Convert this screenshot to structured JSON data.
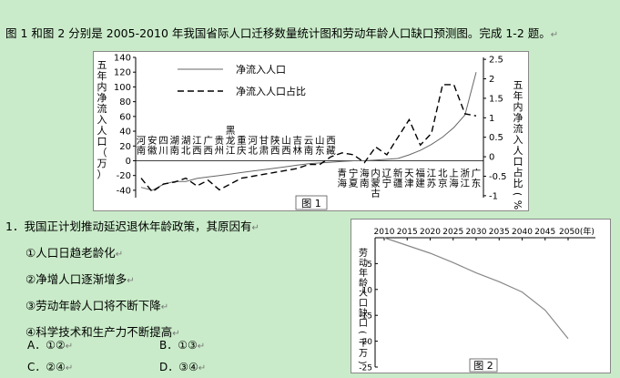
{
  "intro": "图 1 和图 2 分别是 2005-2010 年我国省际人口迁移数量统计图和劳动年龄人口缺口预测图。完成 1-2 题。",
  "return_mark": "↵",
  "question": {
    "stem": "1．我国正计划推动延迟退休年龄政策，其原因有",
    "items": [
      "①人口日趋老龄化",
      "②净增人口逐渐增多",
      "③劳动年龄人口将不断下降",
      "④科学技术和生产力不断提高"
    ],
    "options": [
      "A．①②",
      "B．①③",
      "C．②④",
      "D．③④"
    ]
  },
  "chart_data": [
    {
      "type": "line",
      "caption": "图 1",
      "ylabel_left": "五年内净流入人口（万）",
      "ylabel_right": "五年内净流入人口占比(%)",
      "ylim_left": [
        -50,
        140
      ],
      "yticks_left": [
        -40,
        -20,
        0,
        20,
        40,
        60,
        80,
        100,
        120,
        140
      ],
      "ylim_right": [
        -1.05,
        2.55
      ],
      "yticks_right": [
        -1,
        -0.5,
        0,
        0.5,
        1,
        1.5,
        2,
        2.5
      ],
      "yticklabels_right": [
        "-1",
        "-0.5",
        "0",
        "0.5",
        "1",
        "1.5",
        "2",
        "2.5"
      ],
      "categories": [
        "河南",
        "安徽",
        "四川",
        "湖南",
        "湖北",
        "江西",
        "广西",
        "贵州",
        "黑龙江",
        "重庆",
        "河北",
        "甘肃",
        "陕西",
        "山西",
        "吉林",
        "云南",
        "山东",
        "西藏",
        "青海",
        "宁夏",
        "海南",
        "内蒙古",
        "辽宁",
        "新疆",
        "天津",
        "福建",
        "江苏",
        "北京",
        "上海",
        "浙江",
        "广东"
      ],
      "category_labels_top": [
        "河南",
        "安徽",
        "四川",
        "湖南",
        "湖北",
        "江西",
        "广西",
        "贵州",
        "黑龙江",
        "重庆",
        "河北",
        "甘肃",
        "陕西",
        "山西",
        "吉林",
        "云南",
        "山东",
        "西藏"
      ],
      "category_labels_bottom": [
        "青海",
        "宁夏",
        "海南",
        "内蒙古",
        "辽宁",
        "新疆",
        "天津",
        "福建",
        "江苏",
        "北京",
        "上海",
        "浙江",
        "广东"
      ],
      "series": [
        {
          "name": "净流入人口",
          "axis": "left",
          "style": "solid",
          "values": [
            -36,
            -40,
            -32,
            -28,
            -28,
            -24,
            -22,
            -20,
            -18,
            -16,
            -14,
            -12,
            -10,
            -8,
            -6,
            -4,
            -3,
            -2,
            -1,
            0,
            0,
            1,
            2,
            3,
            8,
            14,
            22,
            32,
            45,
            62,
            120
          ]
        },
        {
          "name": "净流入人口占比",
          "axis": "right",
          "style": "dashed",
          "values": [
            -0.55,
            -0.9,
            -0.7,
            -0.65,
            -0.55,
            -0.75,
            -0.6,
            -0.85,
            -0.7,
            -0.55,
            -0.5,
            -0.45,
            -0.4,
            -0.35,
            -0.3,
            -0.2,
            -0.2,
            0,
            0.1,
            0.05,
            -0.15,
            0.25,
            0.05,
            0.5,
            0.95,
            0.3,
            0.6,
            1.85,
            1.85,
            1.1,
            1.05
          ]
        }
      ]
    },
    {
      "type": "line",
      "caption": "图 2",
      "ylabel": "劳动年龄人口缺口(千万)",
      "x_tick_labels": [
        "2010",
        "2015",
        "2020",
        "2025",
        "2030",
        "2035",
        "2040",
        "2045",
        "2050(年)"
      ],
      "x": [
        2010,
        2015,
        2020,
        2025,
        2030,
        2035,
        2040,
        2045,
        2050
      ],
      "xlim": [
        2010,
        2050
      ],
      "ylim": [
        -25,
        0
      ],
      "yticks": [
        0,
        -5,
        -10,
        -15,
        -20,
        -25
      ],
      "series": [
        {
          "values": [
            0,
            -1.5,
            -3,
            -4.8,
            -6.8,
            -8.5,
            -10.5,
            -14,
            -19.5
          ]
        }
      ]
    }
  ]
}
